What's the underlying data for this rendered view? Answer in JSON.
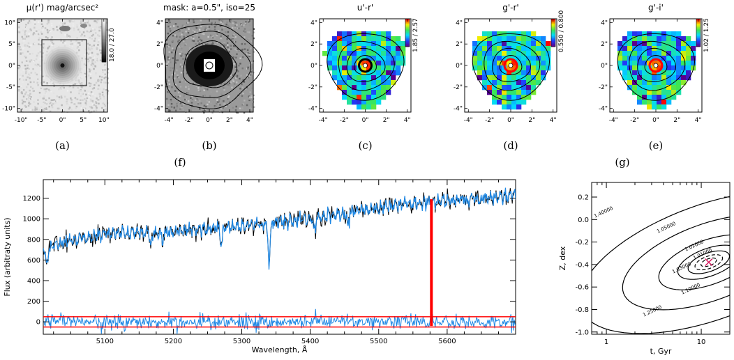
{
  "panels": [
    {
      "id": "a",
      "title": "μ(r') mag/arcsec²",
      "label": "(a)",
      "colorbar_label": "18.0 / 27.0",
      "colormap": "gray",
      "xticks": [
        "-10\"",
        "-5\"",
        "0\"",
        "5\"",
        "10\""
      ],
      "yticks": [
        "10\"",
        "5\"",
        "0\"",
        "-5\"",
        "-10\""
      ]
    },
    {
      "id": "b",
      "title": "mask: a=0.5\", iso=25",
      "label": "(b)",
      "colormap": "gray",
      "xticks": [
        "-4\"",
        "-2\"",
        "0\"",
        "2\"",
        "4\""
      ],
      "yticks": [
        "4\"",
        "2\"",
        "0\"",
        "-2\"",
        "-4\""
      ]
    },
    {
      "id": "c",
      "title": "u'-r'",
      "label": "(c)",
      "colorbar_label": "1.85 / 2.57",
      "colormap": "rainbow",
      "xticks": [
        "-4\"",
        "-2\"",
        "0\"",
        "2\"",
        "4\""
      ],
      "yticks": [
        "4\"",
        "2\"",
        "0\"",
        "-2\"",
        "-4\""
      ]
    },
    {
      "id": "d",
      "title": "g'-r'",
      "label": "(d)",
      "colorbar_label": "0.550 / 0.800",
      "colormap": "rainbow",
      "xticks": [
        "-4\"",
        "-2\"",
        "0\"",
        "2\"",
        "4\""
      ],
      "yticks": [
        "4\"",
        "2\"",
        "0\"",
        "-2\"",
        "-4\""
      ]
    },
    {
      "id": "e",
      "title": "g'-i'",
      "label": "(e)",
      "colorbar_label": "1.02 / 1.25",
      "colormap": "rainbow",
      "xticks": [
        "-4\"",
        "-2\"",
        "0\"",
        "2\"",
        "4\""
      ],
      "yticks": [
        "4\"",
        "2\"",
        "0\"",
        "-2\"",
        "-4\""
      ]
    }
  ],
  "group_labels": {
    "f": "(f)",
    "g": "(g)"
  },
  "chart_data": [
    {
      "type": "line",
      "xlabel": "Wavelength, Å",
      "ylabel": "Flux (arbitraty units)",
      "xlim": [
        5010,
        5700
      ],
      "ylim": [
        -120,
        1380
      ],
      "xticks": [
        5100,
        5200,
        5300,
        5400,
        5500,
        5600
      ],
      "yticks": [
        0,
        200,
        400,
        600,
        800,
        1000,
        1200
      ],
      "series_colors": {
        "observed": "#000000",
        "model": "#1e88e5",
        "residuals": "#1e88e5",
        "error_envelope": "#ff0000",
        "masked_line": "#ff0000"
      },
      "continuum": {
        "x": [
          5010,
          5100,
          5200,
          5300,
          5400,
          5500,
          5600,
          5700
        ],
        "y": [
          720,
          860,
          880,
          930,
          1000,
          1110,
          1180,
          1220
        ]
      },
      "absorption_features": [
        {
          "x": 5340,
          "depth": 380
        },
        {
          "x": 5270,
          "depth": 170
        },
        {
          "x": 5167,
          "depth": 130
        },
        {
          "x": 5184,
          "depth": 110
        },
        {
          "x": 5015,
          "depth": 200
        },
        {
          "x": 5406,
          "depth": 120
        },
        {
          "x": 5455,
          "depth": 110
        }
      ],
      "masked_line": {
        "x": 5577,
        "y_range": [
          -40,
          1190
        ]
      },
      "residual_envelope": {
        "upper": 50,
        "lower": -50
      },
      "noise_amplitude": {
        "observed": 45,
        "residuals": 35
      }
    },
    {
      "type": "contour",
      "xlabel": "t, Gyr",
      "ylabel": "Z, dex",
      "xscale": "log",
      "xlim": [
        0.7,
        20
      ],
      "ylim": [
        -1.02,
        0.33
      ],
      "xticks": [
        1,
        10
      ],
      "yticks": [
        0.2,
        0.0,
        -0.2,
        -0.4,
        -0.6,
        -0.8,
        -1.0
      ],
      "contour_levels": [
        "1.01000",
        "1.02000",
        "1.03000",
        "1.05000",
        "1.10000",
        "1.25000",
        "1.40000"
      ],
      "minimum": {
        "t": 12,
        "z": -0.38
      },
      "minimum_color": "#d81b60"
    }
  ]
}
